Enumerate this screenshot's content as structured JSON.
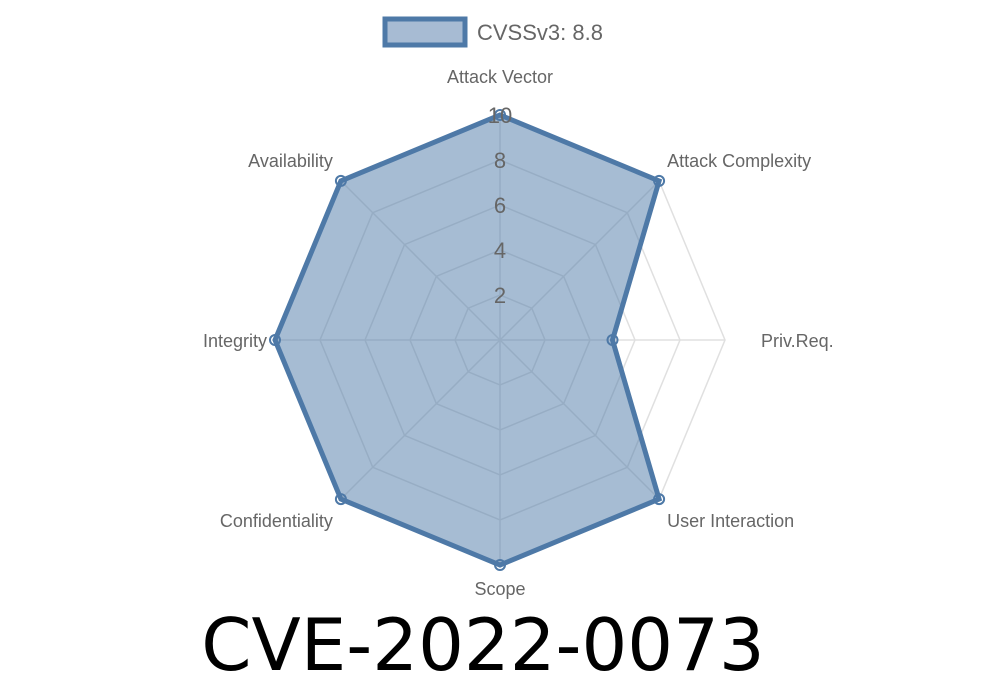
{
  "chart_data": {
    "type": "radar",
    "title": "CVE-2022-0073",
    "axes": [
      "Attack Vector",
      "Attack Complexity",
      "Priv.Req.",
      "User Interaction",
      "Scope",
      "Confidentiality",
      "Integrity",
      "Availability"
    ],
    "series": [
      {
        "name": "CVSSv3: 8.8",
        "values": [
          10,
          10,
          5,
          10,
          10,
          10,
          10,
          10
        ]
      }
    ],
    "rlim": [
      0,
      10
    ],
    "ticks": [
      "2",
      "4",
      "6",
      "8",
      "10"
    ],
    "tick_values": [
      2,
      4,
      6,
      8,
      10
    ],
    "grid": true,
    "legend_position": "top",
    "colors": {
      "stroke": "#4e79a7",
      "fill": "#a7bbd3",
      "grid": "#e0e0e0"
    }
  }
}
